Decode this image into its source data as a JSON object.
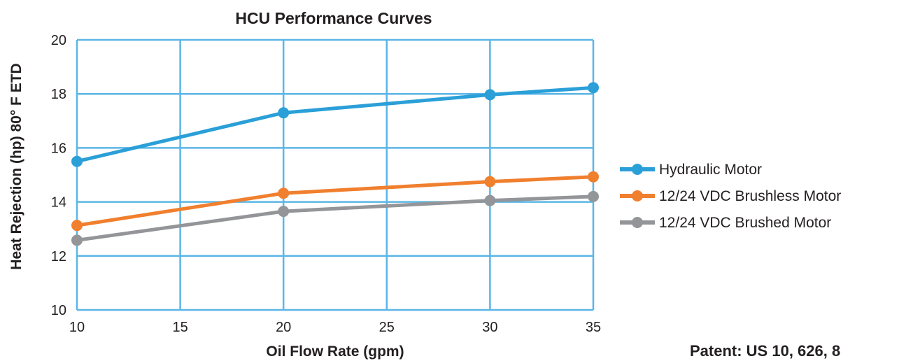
{
  "chart_data": {
    "type": "line",
    "title": "HCU Performance Curves",
    "xlabel": "Oil Flow Rate (gpm)",
    "ylabel": "Heat Rejection (hp) 80° F ETD",
    "xlim": [
      10,
      35
    ],
    "ylim": [
      10,
      20
    ],
    "xticks": [
      "10",
      "15",
      "20",
      "25",
      "30",
      "35"
    ],
    "yticks": [
      "10",
      "12",
      "14",
      "16",
      "18",
      "20"
    ],
    "grid": true,
    "legend_position": "right",
    "x": [
      10,
      20,
      30,
      35
    ],
    "series": [
      {
        "name": "Hydraulic Motor",
        "color": "#2a9fd8",
        "values": [
          15.5,
          17.3,
          17.97,
          18.23
        ]
      },
      {
        "name": "12/24 VDC Brushless Motor",
        "color": "#f07f2e",
        "values": [
          13.13,
          14.32,
          14.75,
          14.93
        ]
      },
      {
        "name": "12/24 VDC Brushed Motor",
        "color": "#939598",
        "values": [
          12.58,
          13.65,
          14.05,
          14.2
        ]
      }
    ],
    "grid_color": "#5bb6e6"
  },
  "footer": {
    "patent": "Patent: US 10, 626, 8"
  }
}
